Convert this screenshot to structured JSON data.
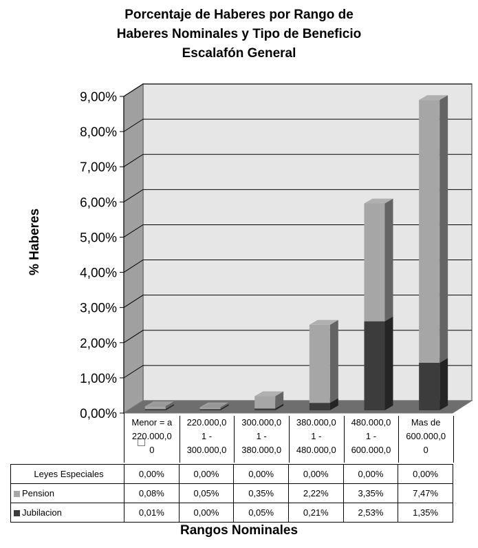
{
  "title_lines": [
    "Porcentaje de Haberes por Rango de",
    "Haberes Nominales y Tipo de Beneficio",
    "Escalafón General"
  ],
  "chart_data": {
    "type": "bar",
    "stacked": true,
    "three_d": true,
    "title": "Porcentaje de Haberes por Rango de Haberes Nominales y Tipo de Beneficio Escalafón General",
    "xlabel": "Rangos Nominales",
    "ylabel": "% Haberes",
    "ylim": [
      0,
      9
    ],
    "yticks": [
      "0,00%",
      "1,00%",
      "2,00%",
      "3,00%",
      "4,00%",
      "5,00%",
      "6,00%",
      "7,00%",
      "8,00%",
      "9,00%"
    ],
    "categories": [
      [
        "Menor = a",
        "220.000,0",
        "0"
      ],
      [
        "220.000,0",
        "1 -",
        "300.000,0"
      ],
      [
        "300.000,0",
        "1 -",
        "380.000,0"
      ],
      [
        "380.000,0",
        "1 -",
        "480.000,0"
      ],
      [
        "480.000,0",
        "1 -",
        "600.000,0"
      ],
      [
        "Mas de",
        "600.000,0",
        "0"
      ]
    ],
    "series": [
      {
        "name": "Leyes Especiales",
        "values": [
          0.0,
          0.0,
          0.0,
          0.0,
          0.0,
          0.0
        ],
        "labels": [
          "0,00%",
          "0,00%",
          "0,00%",
          "0,00%",
          "0,00%",
          "0,00%"
        ],
        "color": "#ffffff"
      },
      {
        "name": "Pension",
        "values": [
          0.08,
          0.05,
          0.35,
          2.22,
          3.35,
          7.47
        ],
        "labels": [
          "0,08%",
          "0,05%",
          "0,35%",
          "2,22%",
          "3,35%",
          "7,47%"
        ],
        "color": "#a6a6a6"
      },
      {
        "name": "Jubilacion",
        "values": [
          0.01,
          0.0,
          0.05,
          0.21,
          2.53,
          1.35
        ],
        "labels": [
          "0,01%",
          "0,00%",
          "0,05%",
          "0,21%",
          "2,53%",
          "1,35%"
        ],
        "color": "#3c3c3c"
      }
    ],
    "grid": true,
    "legend": "data-table"
  }
}
